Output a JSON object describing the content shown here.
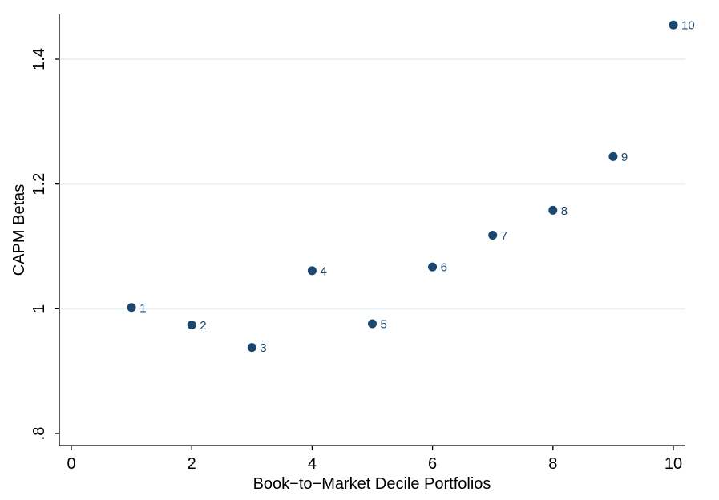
{
  "chart_data": {
    "type": "scatter",
    "xlabel": "Book−to−Market Decile Portfolios",
    "ylabel": "CAPM Betas",
    "xlim": [
      0,
      10
    ],
    "ylim": [
      0.8,
      1.45
    ],
    "xticks": [
      0,
      2,
      4,
      6,
      8,
      10
    ],
    "xtick_labels": [
      "0",
      "2",
      "4",
      "6",
      "8",
      "10"
    ],
    "yticks": [
      0.8,
      1.0,
      1.2,
      1.4
    ],
    "ytick_labels": [
      ".8",
      "1",
      "1.2",
      "1.4"
    ],
    "grid": "horizontal",
    "marker_color": "#1a476f",
    "grid_color": "#eaf2f3",
    "points": [
      {
        "x": 1,
        "y": 1.002,
        "label": "1"
      },
      {
        "x": 2,
        "y": 0.974,
        "label": "2"
      },
      {
        "x": 3,
        "y": 0.938,
        "label": "3"
      },
      {
        "x": 4,
        "y": 1.061,
        "label": "4"
      },
      {
        "x": 5,
        "y": 0.976,
        "label": "5"
      },
      {
        "x": 6,
        "y": 1.067,
        "label": "6"
      },
      {
        "x": 7,
        "y": 1.118,
        "label": "7"
      },
      {
        "x": 8,
        "y": 1.158,
        "label": "8"
      },
      {
        "x": 9,
        "y": 1.244,
        "label": "9"
      },
      {
        "x": 10,
        "y": 1.455,
        "label": "10"
      }
    ]
  }
}
